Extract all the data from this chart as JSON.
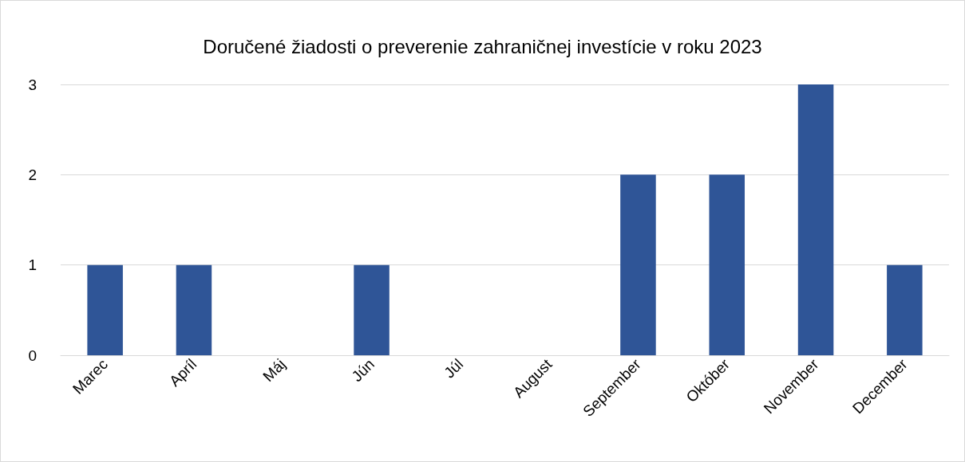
{
  "chart_data": {
    "type": "bar",
    "title": "Doručené žiadosti o preverenie zahraničnej investície v roku 2023",
    "categories": [
      "Marec",
      "Apríl",
      "Máj",
      "Jún",
      "Júl",
      "August",
      "September",
      "Október",
      "November",
      "December"
    ],
    "values": [
      1,
      1,
      0,
      1,
      0,
      0,
      2,
      2,
      3,
      1
    ],
    "color": "#2f5597",
    "ylim": [
      0,
      3
    ],
    "yticks": [
      0,
      1,
      2,
      3
    ],
    "grid": "y"
  }
}
